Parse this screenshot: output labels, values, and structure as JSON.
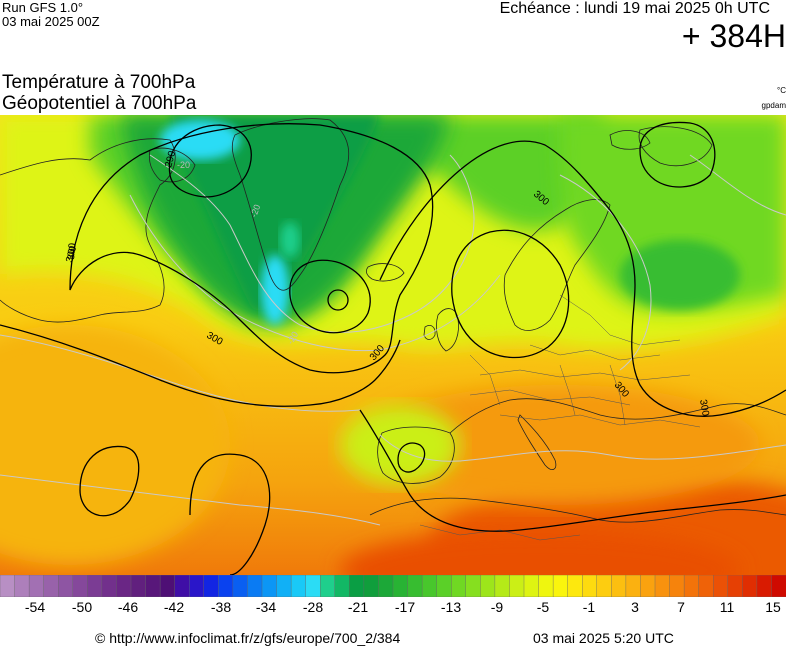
{
  "header": {
    "run_model": "Run GFS 1.0°",
    "run_time": "03 mai 2025 00Z",
    "echeance": "Echéance : lundi 19 mai 2025 0h UTC",
    "lead": "+ 384H",
    "title_line1": "Température à 700hPa",
    "title_line2": "Géopotentiel à 700hPa",
    "unit_temp": "°C",
    "unit_geo": "gpdam"
  },
  "map": {
    "isohypse_labels": [
      "300",
      "300",
      "300",
      "300",
      "300",
      "300",
      "300",
      "290"
    ],
    "temperature_labels": [
      "-20",
      "-20",
      "-20"
    ]
  },
  "color_scale": {
    "colors": [
      "#b88fc4",
      "#ad7fbb",
      "#a270b3",
      "#9862aa",
      "#8e55a3",
      "#85489b",
      "#7b3c94",
      "#72308c",
      "#6a2685",
      "#61207e",
      "#58177a",
      "#4e0f75",
      "#3f0ea6",
      "#2a16c9",
      "#1225e3",
      "#0a42ef",
      "#0a5ff1",
      "#0a7bf3",
      "#0c96f5",
      "#11b0f6",
      "#19c9f7",
      "#2bdcf5",
      "#1fcf8c",
      "#12b865",
      "#0a9e44",
      "#109e3c",
      "#1ca838",
      "#28b334",
      "#37bd30",
      "#48c72c",
      "#5bd028",
      "#70d823",
      "#86df1f",
      "#9de51b",
      "#b5ea18",
      "#cbef16",
      "#def412",
      "#eff60f",
      "#faf50d",
      "#fde80e",
      "#fddb0f",
      "#fdcd10",
      "#fcbf10",
      "#fbb110",
      "#faa20f",
      "#f8920e",
      "#f6830c",
      "#f3730a",
      "#ef6208",
      "#eb5106",
      "#e64004",
      "#e02e02",
      "#d91b01",
      "#cf0a00"
    ],
    "tick_labels": [
      "-54",
      "-50",
      "-46",
      "-42",
      "-38",
      "-34",
      "-28",
      "-21",
      "-17",
      "-13",
      "-9",
      "-5",
      "-1",
      "3",
      "7",
      "11",
      "15"
    ]
  },
  "footer": {
    "source_url": "© http://www.infoclimat.fr/z/gfs/europe/700_2/384",
    "generated": "03 mai 2025  5:20 UTC"
  }
}
